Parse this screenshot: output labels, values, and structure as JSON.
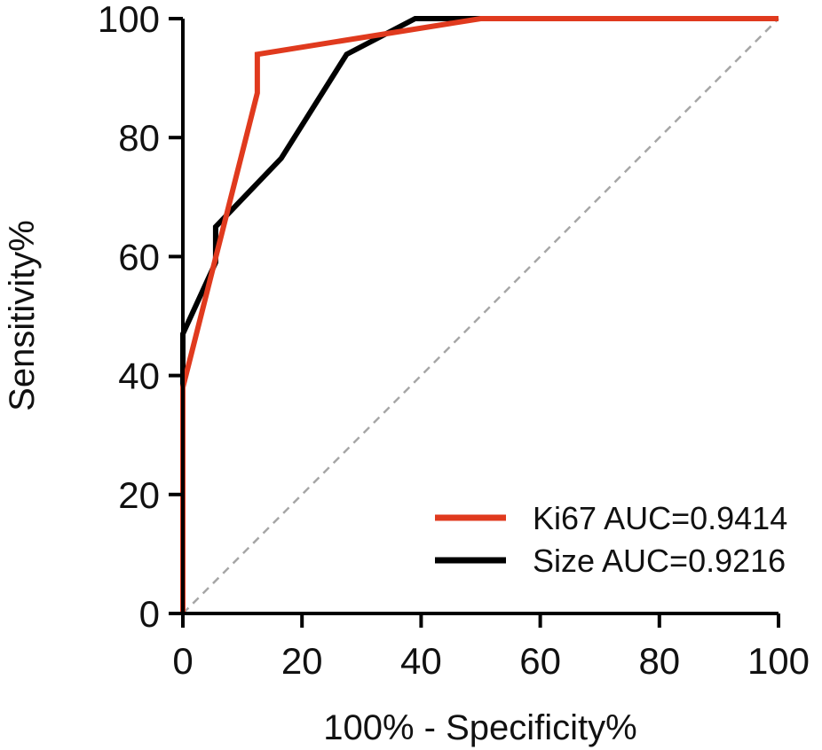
{
  "chart_data": {
    "type": "line",
    "title": "",
    "xlabel": "100% - Specificity%",
    "ylabel": "Sensitivity%",
    "xlim": [
      0,
      100
    ],
    "ylim": [
      0,
      100
    ],
    "xticks": [
      "0",
      "20",
      "40",
      "60",
      "80",
      "100"
    ],
    "yticks": [
      "0",
      "20",
      "40",
      "60",
      "80",
      "100"
    ],
    "grid": false,
    "legend_position": "bottom-right",
    "reference_line": {
      "x": [
        0,
        100
      ],
      "y": [
        0,
        100
      ],
      "color": "#a6a6a6",
      "style": "dashed"
    },
    "series": [
      {
        "name": "Ki67 AUC=0.9414",
        "color": "#e03a1e",
        "x": [
          0,
          0,
          12.5,
          12.5,
          50,
          100
        ],
        "y": [
          0,
          38,
          87.5,
          94,
          100,
          100
        ]
      },
      {
        "name": "Size AUC=0.9216",
        "color": "#000000",
        "x": [
          0,
          0,
          5.5,
          5.5,
          16.5,
          27.5,
          39,
          50,
          100
        ],
        "y": [
          0,
          47,
          59,
          65,
          76.5,
          94,
          100,
          100,
          100
        ]
      }
    ]
  }
}
